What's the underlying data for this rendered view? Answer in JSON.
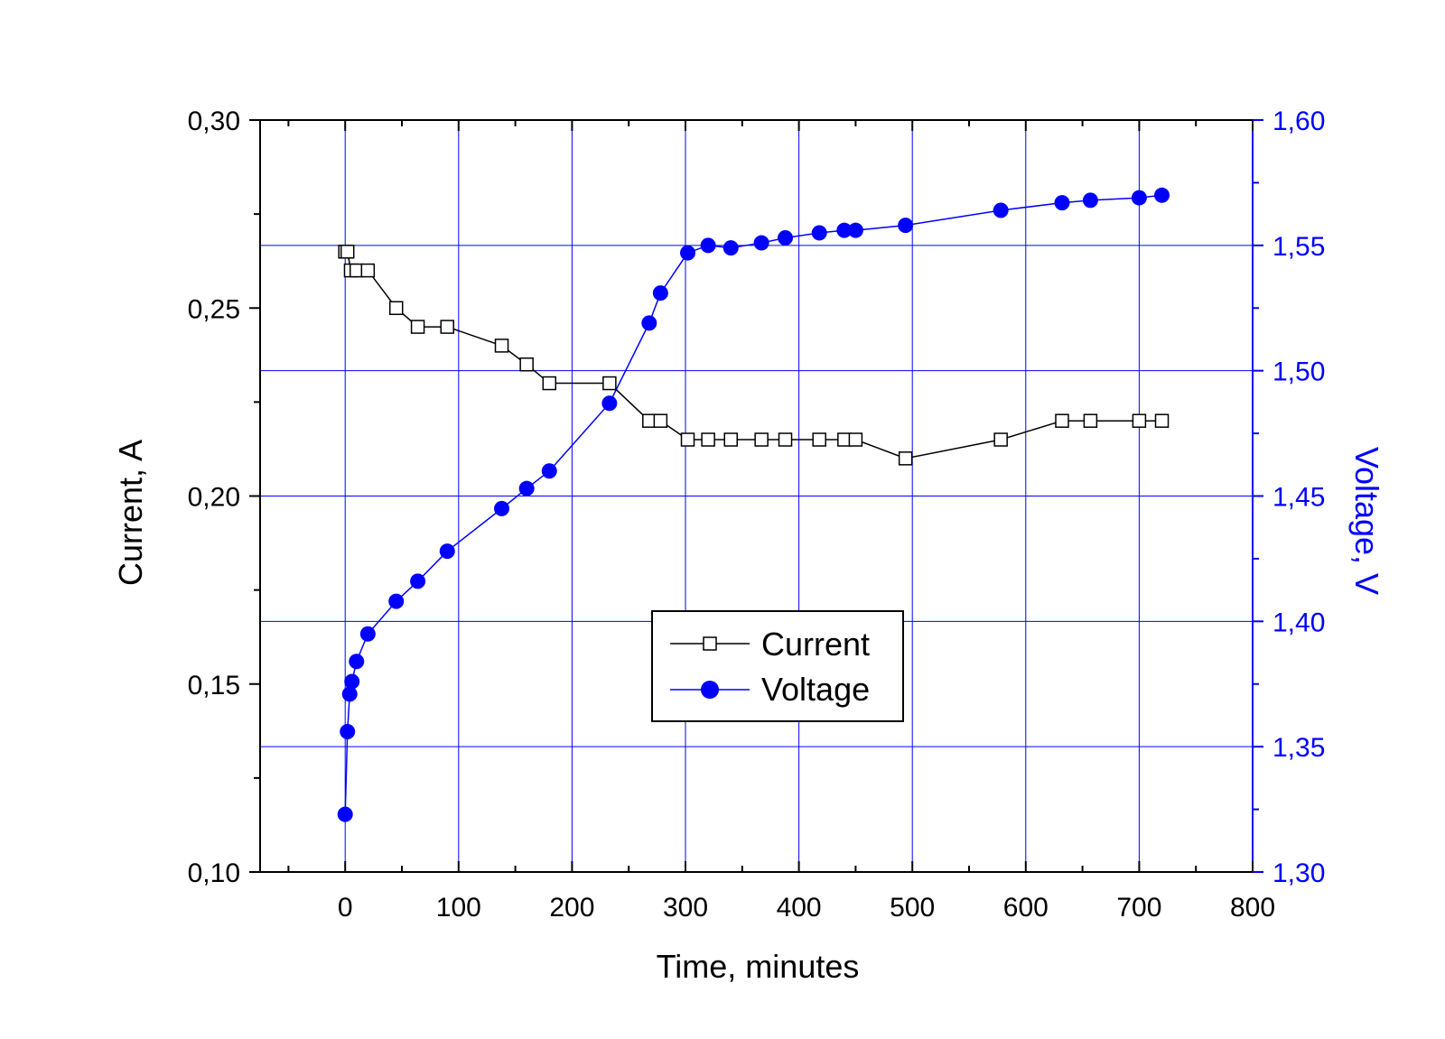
{
  "chart_data": {
    "type": "line",
    "title": "",
    "xlabel": "Time, minutes",
    "ylabel_left": "Current, A",
    "ylabel_right": "Voltage, V",
    "xlim": [
      -75,
      800
    ],
    "ylim_left": [
      0.1,
      0.3
    ],
    "ylim_right": [
      1.3,
      1.6
    ],
    "x_ticks": [
      "0",
      "100",
      "200",
      "300",
      "400",
      "500",
      "600",
      "700",
      "800"
    ],
    "y_left_ticks": [
      "0,10",
      "0,15",
      "0,20",
      "0,25",
      "0,30"
    ],
    "y_right_ticks": [
      "1,30",
      "1,35",
      "1,40",
      "1,45",
      "1,50",
      "1,55",
      "1,60"
    ],
    "grid": true,
    "legend_position": "lower-center",
    "colors": {
      "current": "#000000",
      "voltage": "#0000ff",
      "grid": "#0000ff"
    },
    "series": [
      {
        "name": "Current",
        "axis": "left",
        "marker": "open-square",
        "x": [
          0,
          2,
          5,
          10,
          20,
          45,
          64,
          90,
          138,
          160,
          180,
          233,
          268,
          278,
          302,
          320,
          340,
          367,
          388,
          418,
          440,
          450,
          494,
          578,
          632,
          657,
          700,
          720
        ],
        "y": [
          0.265,
          0.265,
          0.26,
          0.26,
          0.26,
          0.25,
          0.245,
          0.245,
          0.24,
          0.235,
          0.23,
          0.23,
          0.22,
          0.22,
          0.215,
          0.215,
          0.215,
          0.215,
          0.215,
          0.215,
          0.215,
          0.215,
          0.21,
          0.215,
          0.22,
          0.22,
          0.22,
          0.22
        ]
      },
      {
        "name": "Voltage",
        "axis": "right",
        "marker": "filled-circle",
        "x": [
          0,
          2,
          4,
          6,
          10,
          20,
          45,
          64,
          90,
          138,
          160,
          180,
          233,
          268,
          278,
          302,
          320,
          340,
          367,
          388,
          418,
          440,
          450,
          494,
          578,
          632,
          657,
          700,
          720
        ],
        "y": [
          1.323,
          1.356,
          1.371,
          1.376,
          1.384,
          1.395,
          1.408,
          1.416,
          1.428,
          1.445,
          1.453,
          1.46,
          1.487,
          1.519,
          1.531,
          1.547,
          1.55,
          1.549,
          1.551,
          1.553,
          1.555,
          1.556,
          1.556,
          1.558,
          1.564,
          1.567,
          1.568,
          1.569,
          1.57
        ]
      }
    ]
  }
}
